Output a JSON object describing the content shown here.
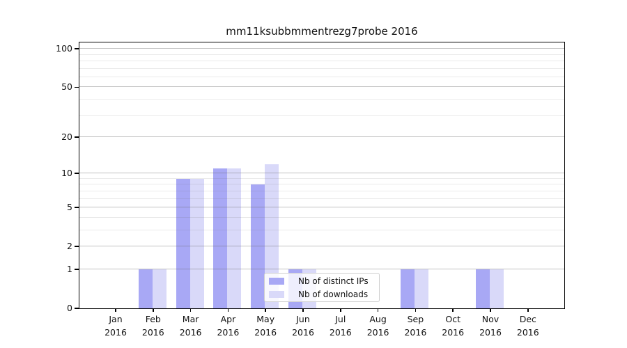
{
  "figure": {
    "background": "#ffffff",
    "text_color": "#111111",
    "axis_color": "#000000",
    "grid_major_color": "rgba(105,105,105,0.42)",
    "grid_minor_color": "rgba(105,105,105,0.14)",
    "legend_bg": "rgba(255,255,255,0.8)",
    "legend_border": "#cfcfcf"
  },
  "chart_data": {
    "type": "bar",
    "title": "mm11ksubbmmentrezg7probe 2016",
    "categories": [
      "Jan 2016",
      "Feb 2016",
      "Mar 2016",
      "Apr 2016",
      "May 2016",
      "Jun 2016",
      "Jul 2016",
      "Aug 2016",
      "Sep 2016",
      "Oct 2016",
      "Nov 2016",
      "Dec 2016"
    ],
    "x_tick_month": [
      "Jan",
      "Feb",
      "Mar",
      "Apr",
      "May",
      "Jun",
      "Jul",
      "Aug",
      "Sep",
      "Oct",
      "Nov",
      "Dec"
    ],
    "x_tick_year": "2016",
    "series": [
      {
        "name": "Nb of distinct IPs",
        "color": "#a8a8f5",
        "values": [
          0,
          1,
          9,
          11,
          8,
          1,
          0,
          0,
          1,
          0,
          1,
          0
        ]
      },
      {
        "name": "Nb of downloads",
        "color": "#d9d9f9",
        "values": [
          0,
          1,
          9,
          11,
          12,
          1,
          0,
          0,
          1,
          0,
          1,
          0
        ]
      }
    ],
    "xlabel": "",
    "ylabel": "",
    "yscale": "log1p",
    "ylim": [
      0,
      112
    ],
    "y_major_ticks": [
      0,
      1,
      2,
      5,
      10,
      20,
      50,
      100
    ],
    "y_minor_ticks": [
      3,
      4,
      6,
      7,
      8,
      9,
      30,
      40,
      60,
      70,
      80,
      90
    ],
    "grid": "horizontal",
    "legend_position": "lower center-right inside plot"
  }
}
